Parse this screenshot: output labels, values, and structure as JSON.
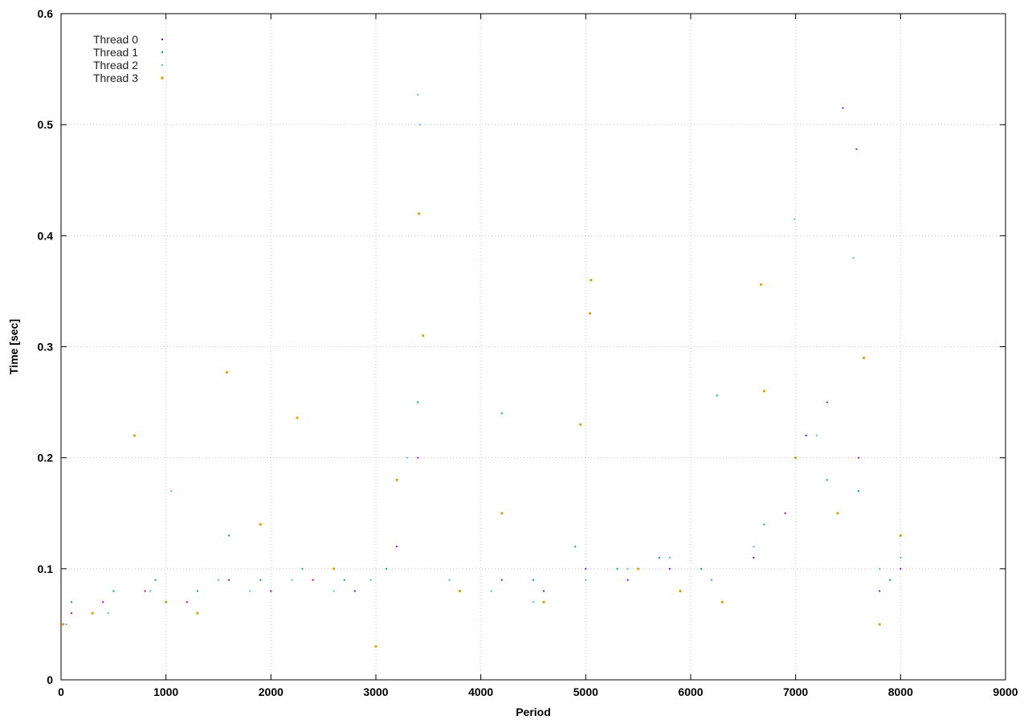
{
  "chart_data": {
    "type": "scatter",
    "title": "",
    "xlabel": "Period",
    "ylabel": "Time [sec]",
    "xlim": [
      0,
      9000
    ],
    "ylim": [
      0,
      0.6
    ],
    "xticks": [
      0,
      1000,
      2000,
      3000,
      4000,
      5000,
      6000,
      7000,
      8000,
      9000
    ],
    "yticks": [
      0,
      0.1,
      0.2,
      0.3,
      0.4,
      0.5,
      0.6
    ],
    "xtick_labels": [
      "0",
      "1000",
      "2000",
      "3000",
      "4000",
      "5000",
      "6000",
      "7000",
      "8000",
      "9000"
    ],
    "ytick_labels": [
      "0",
      "0.1",
      "0.2",
      "0.3",
      "0.4",
      "0.5",
      "0.6"
    ],
    "grid": true,
    "legend_position": "top-left",
    "series": [
      {
        "name": "Thread 0",
        "color": "#9400d3",
        "points": [
          [
            100,
            0.06
          ],
          [
            400,
            0.07
          ],
          [
            800,
            0.08
          ],
          [
            1200,
            0.07
          ],
          [
            1600,
            0.09
          ],
          [
            2000,
            0.08
          ],
          [
            2400,
            0.09
          ],
          [
            2800,
            0.08
          ],
          [
            3200,
            0.12
          ],
          [
            3400,
            0.2
          ],
          [
            3800,
            0.08
          ],
          [
            4200,
            0.09
          ],
          [
            4600,
            0.08
          ],
          [
            5000,
            0.1
          ],
          [
            5400,
            0.09
          ],
          [
            5800,
            0.1
          ],
          [
            6200,
            0.09
          ],
          [
            6600,
            0.11
          ],
          [
            6900,
            0.15
          ],
          [
            7100,
            0.22
          ],
          [
            7300,
            0.25
          ],
          [
            7450,
            0.515
          ],
          [
            7580,
            0.478
          ],
          [
            7600,
            0.2
          ],
          [
            7800,
            0.08
          ],
          [
            8000,
            0.1
          ]
        ]
      },
      {
        "name": "Thread 1",
        "color": "#009e73",
        "points": [
          [
            100,
            0.07
          ],
          [
            500,
            0.08
          ],
          [
            900,
            0.09
          ],
          [
            1300,
            0.08
          ],
          [
            1600,
            0.13
          ],
          [
            1900,
            0.09
          ],
          [
            2300,
            0.1
          ],
          [
            2700,
            0.09
          ],
          [
            3100,
            0.1
          ],
          [
            3400,
            0.25
          ],
          [
            3800,
            0.08
          ],
          [
            4200,
            0.24
          ],
          [
            4500,
            0.09
          ],
          [
            4900,
            0.12
          ],
          [
            5300,
            0.1
          ],
          [
            5700,
            0.11
          ],
          [
            6100,
            0.1
          ],
          [
            6250,
            0.256
          ],
          [
            6700,
            0.14
          ],
          [
            7000,
            0.2
          ],
          [
            7300,
            0.18
          ],
          [
            7600,
            0.17
          ],
          [
            7900,
            0.09
          ],
          [
            8000,
            0.13
          ]
        ]
      },
      {
        "name": "Thread 2",
        "color": "#56b4e9",
        "points": [
          [
            50,
            0.05
          ],
          [
            450,
            0.06
          ],
          [
            850,
            0.08
          ],
          [
            1050,
            0.17
          ],
          [
            1500,
            0.09
          ],
          [
            1800,
            0.08
          ],
          [
            2200,
            0.09
          ],
          [
            2600,
            0.08
          ],
          [
            2950,
            0.09
          ],
          [
            3300,
            0.2
          ],
          [
            3400,
            0.527
          ],
          [
            3420,
            0.5
          ],
          [
            3700,
            0.09
          ],
          [
            4100,
            0.08
          ],
          [
            4500,
            0.07
          ],
          [
            5000,
            0.09
          ],
          [
            5400,
            0.1
          ],
          [
            5800,
            0.11
          ],
          [
            6200,
            0.09
          ],
          [
            6600,
            0.12
          ],
          [
            6990,
            0.415
          ],
          [
            7200,
            0.22
          ],
          [
            7550,
            0.38
          ],
          [
            7800,
            0.1
          ],
          [
            8000,
            0.11
          ]
        ]
      },
      {
        "name": "Thread 3",
        "color": "#e69f00",
        "points": [
          [
            20,
            0.05
          ],
          [
            300,
            0.06
          ],
          [
            700,
            0.22
          ],
          [
            1000,
            0.07
          ],
          [
            1300,
            0.06
          ],
          [
            1580,
            0.277
          ],
          [
            1900,
            0.14
          ],
          [
            2250,
            0.236
          ],
          [
            2600,
            0.1
          ],
          [
            3000,
            0.03
          ],
          [
            3200,
            0.18
          ],
          [
            3410,
            0.42
          ],
          [
            3450,
            0.31
          ],
          [
            3800,
            0.08
          ],
          [
            4200,
            0.15
          ],
          [
            4600,
            0.07
          ],
          [
            4950,
            0.23
          ],
          [
            5050,
            0.36
          ],
          [
            5040,
            0.33
          ],
          [
            5500,
            0.1
          ],
          [
            5900,
            0.08
          ],
          [
            6300,
            0.07
          ],
          [
            6670,
            0.356
          ],
          [
            6700,
            0.26
          ],
          [
            7000,
            0.2
          ],
          [
            7400,
            0.15
          ],
          [
            7650,
            0.29
          ],
          [
            7800,
            0.05
          ],
          [
            8000,
            0.13
          ]
        ]
      }
    ]
  }
}
